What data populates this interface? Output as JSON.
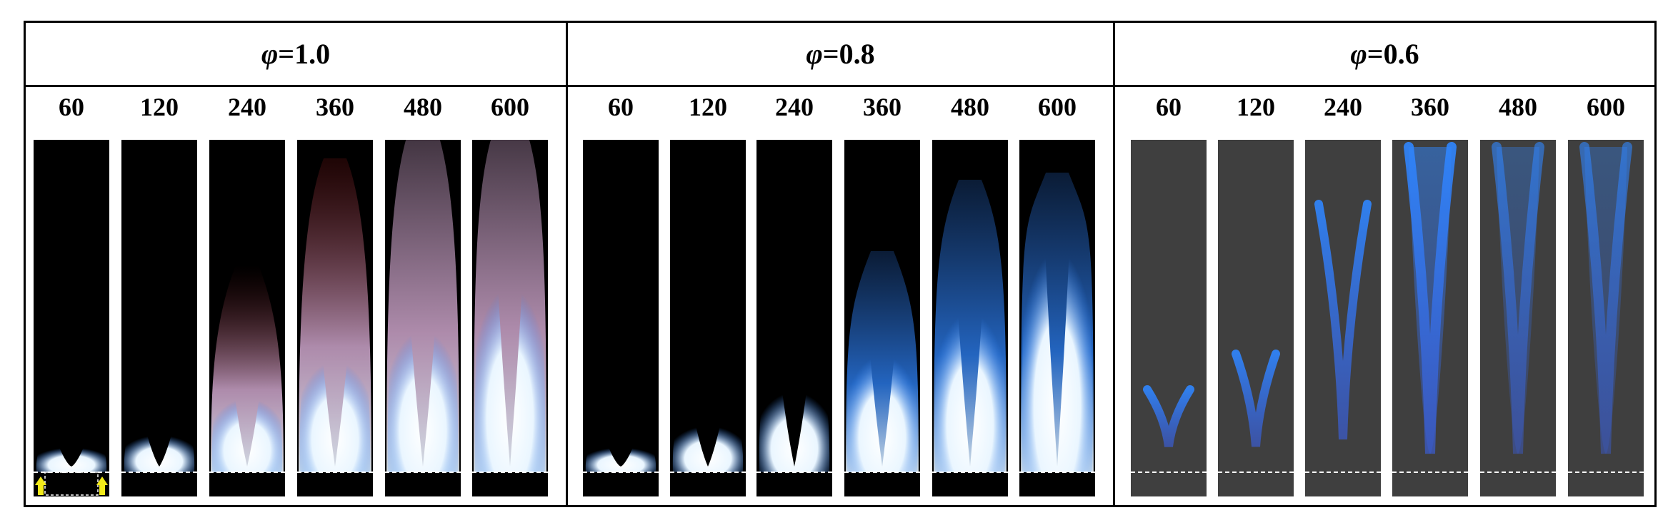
{
  "groups": [
    {
      "id": "phi-1-0",
      "symbol": "φ",
      "value_text": "=1.0",
      "background": "#000000",
      "columns": [
        "60",
        "120",
        "240",
        "360",
        "480",
        "600"
      ]
    },
    {
      "id": "phi-0-8",
      "symbol": "φ",
      "value_text": "=0.8",
      "background": "#000000",
      "columns": [
        "60",
        "120",
        "240",
        "360",
        "480",
        "600"
      ]
    },
    {
      "id": "phi-0-6",
      "symbol": "φ",
      "value_text": "=0.6",
      "background": "#3f3f3f",
      "columns": [
        "60",
        "120",
        "240",
        "360",
        "480",
        "600"
      ]
    }
  ],
  "colors": {
    "flame_core": "#eaf6ff",
    "flame_blue": "#2f86ff",
    "flame_pink": "#e7b9e4",
    "flame_red": "#7a1414",
    "arrow_yellow": "#f2ea1a",
    "reference_line": "#ffffff"
  },
  "annotations": {
    "reference_line_style": "dashed",
    "inlet_arrow_icon": "up-arrow-icon"
  }
}
